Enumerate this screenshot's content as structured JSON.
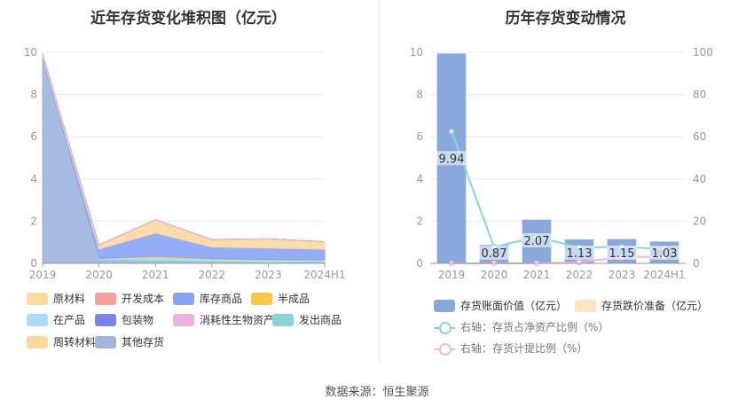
{
  "left_title": "近年存货变化堆积图（亿元）",
  "right_title": "历年存货变动情况",
  "source": "数据来源：恒生聚源",
  "chart_data": [
    {
      "type": "area",
      "title": "近年存货变化堆积图（亿元）",
      "categories": [
        "2019",
        "2020",
        "2021",
        "2022",
        "2023",
        "2024H1"
      ],
      "ylim": [
        0,
        10
      ],
      "yticks": [
        "0",
        "2",
        "4",
        "6",
        "8",
        "10"
      ],
      "series": [
        {
          "name": "原材料",
          "color": "#fcd9a0",
          "values": [
            0.15,
            0.18,
            0.62,
            0.35,
            0.42,
            0.35
          ]
        },
        {
          "name": "开发成本",
          "color": "#f4a39a",
          "values": [
            0,
            0,
            0,
            0,
            0,
            0
          ]
        },
        {
          "name": "库存商品",
          "color": "#8aa4f5",
          "values": [
            0.2,
            0.45,
            1.1,
            0.55,
            0.55,
            0.5
          ]
        },
        {
          "name": "半成品",
          "color": "#fbc646",
          "values": [
            0,
            0,
            0.05,
            0.02,
            0.02,
            0.02
          ]
        },
        {
          "name": "在产品",
          "color": "#a9dcf6",
          "values": [
            0.1,
            0.04,
            0.12,
            0.08,
            0.1,
            0.06
          ]
        },
        {
          "name": "包装物",
          "color": "#7b84ea",
          "values": [
            0,
            0,
            0,
            0,
            0,
            0
          ]
        },
        {
          "name": "消耗性生物资产",
          "color": "#e8b3dc",
          "values": [
            0,
            0,
            0,
            0,
            0,
            0
          ]
        },
        {
          "name": "发出商品",
          "color": "#88d4d6",
          "values": [
            0,
            0,
            0.1,
            0.05,
            0.04,
            0.05
          ]
        },
        {
          "name": "周转材料",
          "color": "#fdd89c",
          "values": [
            0,
            0.01,
            0.01,
            0.01,
            0.01,
            0.01
          ]
        },
        {
          "name": "其他存货",
          "color": "#9fb5de",
          "values": [
            9.49,
            0.19,
            0.07,
            0.07,
            0.02,
            0.04
          ]
        }
      ]
    },
    {
      "type": "bar",
      "title": "历年存货变动情况",
      "categories": [
        "2019",
        "2020",
        "2021",
        "2022",
        "2023",
        "2024H1"
      ],
      "ylim": [
        0,
        10
      ],
      "yticks": [
        "0",
        "2",
        "4",
        "6",
        "8",
        "10"
      ],
      "y2lim": [
        0,
        100
      ],
      "y2ticks": [
        "0",
        "20",
        "40",
        "60",
        "80",
        "100"
      ],
      "series": [
        {
          "name": "存货账面价值（亿元）",
          "color": "#8aa8dc",
          "values": [
            9.94,
            0.87,
            2.07,
            1.13,
            1.15,
            1.03
          ],
          "labels": [
            "9.94",
            "0.87",
            "2.07",
            "1.13",
            "1.15",
            "1.03"
          ]
        },
        {
          "name": "存货跌价准备（亿元）",
          "color": "#fde5c4",
          "values": [
            0,
            0,
            0,
            0,
            0,
            0
          ]
        },
        {
          "name": "右轴：存货占净资产比例（%）",
          "color": "#8ad6de",
          "axis": "right",
          "values": [
            62.5,
            7.8,
            12.5,
            7.5,
            7.8,
            6.8
          ]
        },
        {
          "name": "右轴：存货计提比例（%）",
          "color": "#f2b8d8",
          "axis": "right",
          "values": [
            0,
            0,
            0,
            0.5,
            3.0,
            3.2
          ]
        }
      ]
    }
  ]
}
